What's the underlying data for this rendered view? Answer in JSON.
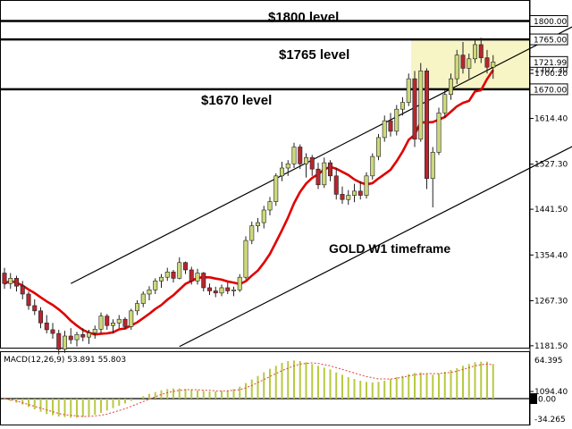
{
  "chart_data": {
    "type": "candlestick",
    "watermark": "GOLD W1 timeframe",
    "price_ticks": [
      "1707.30",
      "1700.20",
      "1614.40",
      "1527.30",
      "1441.50",
      "1354.40",
      "1267.30",
      "1181.50",
      "1094.40"
    ],
    "tick_values": [
      1707.3,
      1700.2,
      1614.4,
      1527.3,
      1441.5,
      1354.4,
      1267.3,
      1181.5,
      1094.4
    ],
    "price_range": [
      1040,
      1840
    ],
    "levels": [
      {
        "value": 1800,
        "tag": "1800.00",
        "label": "$1800 level"
      },
      {
        "value": 1765,
        "tag": "1765.00",
        "label": "$1765 level"
      },
      {
        "value": 1670,
        "tag": "1670.00",
        "label": "$1670 level"
      }
    ],
    "current_price": {
      "value": 1721.99,
      "tag": "1721.99"
    },
    "highlight_zone": [
      1670,
      1765
    ],
    "bull_color": "#cdd97a",
    "bear_color": "#b8262e",
    "ma_color": "#e00000",
    "channel": {
      "upper": [
        [
          11,
          1300
        ],
        [
          96,
          1800
        ]
      ],
      "lower": [
        [
          29,
          1180
        ],
        [
          96,
          1572
        ]
      ]
    },
    "candles": [
      [
        1320,
        1330,
        1290,
        1300
      ],
      [
        1300,
        1320,
        1290,
        1310
      ],
      [
        1310,
        1315,
        1285,
        1295
      ],
      [
        1295,
        1305,
        1270,
        1280
      ],
      [
        1280,
        1285,
        1250,
        1258
      ],
      [
        1258,
        1270,
        1240,
        1248
      ],
      [
        1248,
        1255,
        1215,
        1225
      ],
      [
        1225,
        1240,
        1205,
        1212
      ],
      [
        1212,
        1225,
        1195,
        1205
      ],
      [
        1205,
        1212,
        1165,
        1175
      ],
      [
        1175,
        1210,
        1168,
        1200
      ],
      [
        1200,
        1215,
        1185,
        1193
      ],
      [
        1193,
        1208,
        1180,
        1203
      ],
      [
        1203,
        1215,
        1190,
        1198
      ],
      [
        1198,
        1212,
        1185,
        1206
      ],
      [
        1206,
        1220,
        1195,
        1213
      ],
      [
        1213,
        1245,
        1205,
        1238
      ],
      [
        1238,
        1242,
        1212,
        1220
      ],
      [
        1220,
        1232,
        1205,
        1225
      ],
      [
        1225,
        1240,
        1215,
        1232
      ],
      [
        1232,
        1236,
        1212,
        1218
      ],
      [
        1218,
        1252,
        1212,
        1248
      ],
      [
        1248,
        1268,
        1240,
        1262
      ],
      [
        1262,
        1285,
        1255,
        1280
      ],
      [
        1280,
        1295,
        1268,
        1288
      ],
      [
        1288,
        1310,
        1280,
        1305
      ],
      [
        1305,
        1318,
        1292,
        1312
      ],
      [
        1312,
        1330,
        1305,
        1322
      ],
      [
        1322,
        1326,
        1302,
        1310
      ],
      [
        1310,
        1350,
        1308,
        1340
      ],
      [
        1340,
        1342,
        1318,
        1326
      ],
      [
        1326,
        1332,
        1298,
        1305
      ],
      [
        1305,
        1328,
        1298,
        1320
      ],
      [
        1320,
        1322,
        1285,
        1292
      ],
      [
        1292,
        1300,
        1278,
        1286
      ],
      [
        1286,
        1294,
        1274,
        1282
      ],
      [
        1282,
        1298,
        1276,
        1292
      ],
      [
        1292,
        1302,
        1280,
        1286
      ],
      [
        1286,
        1294,
        1276,
        1288
      ],
      [
        1288,
        1318,
        1284,
        1312
      ],
      [
        1312,
        1390,
        1308,
        1382
      ],
      [
        1382,
        1418,
        1375,
        1410
      ],
      [
        1410,
        1425,
        1398,
        1416
      ],
      [
        1416,
        1448,
        1405,
        1440
      ],
      [
        1440,
        1465,
        1430,
        1456
      ],
      [
        1456,
        1510,
        1448,
        1505
      ],
      [
        1505,
        1532,
        1495,
        1520
      ],
      [
        1520,
        1535,
        1505,
        1528
      ],
      [
        1528,
        1568,
        1520,
        1560
      ],
      [
        1560,
        1565,
        1518,
        1528
      ],
      [
        1528,
        1548,
        1502,
        1540
      ],
      [
        1540,
        1545,
        1505,
        1518
      ],
      [
        1518,
        1530,
        1480,
        1488
      ],
      [
        1488,
        1540,
        1482,
        1530
      ],
      [
        1530,
        1535,
        1495,
        1505
      ],
      [
        1505,
        1520,
        1460,
        1470
      ],
      [
        1470,
        1485,
        1452,
        1460
      ],
      [
        1460,
        1478,
        1450,
        1468
      ],
      [
        1468,
        1490,
        1455,
        1476
      ],
      [
        1476,
        1495,
        1460,
        1468
      ],
      [
        1468,
        1512,
        1462,
        1505
      ],
      [
        1505,
        1548,
        1498,
        1542
      ],
      [
        1542,
        1585,
        1535,
        1578
      ],
      [
        1578,
        1620,
        1570,
        1610
      ],
      [
        1610,
        1625,
        1580,
        1590
      ],
      [
        1590,
        1640,
        1582,
        1632
      ],
      [
        1632,
        1655,
        1620,
        1645
      ],
      [
        1645,
        1700,
        1638,
        1690
      ],
      [
        1690,
        1705,
        1560,
        1575
      ],
      [
        1575,
        1720,
        1570,
        1705
      ],
      [
        1705,
        1710,
        1480,
        1500
      ],
      [
        1500,
        1560,
        1445,
        1550
      ],
      [
        1550,
        1635,
        1545,
        1625
      ],
      [
        1625,
        1668,
        1615,
        1660
      ],
      [
        1660,
        1700,
        1650,
        1690
      ],
      [
        1690,
        1745,
        1680,
        1735
      ],
      [
        1735,
        1760,
        1700,
        1710
      ],
      [
        1710,
        1738,
        1690,
        1728
      ],
      [
        1728,
        1765,
        1720,
        1755
      ],
      [
        1755,
        1768,
        1720,
        1730
      ],
      [
        1730,
        1745,
        1700,
        1712
      ],
      [
        1712,
        1735,
        1690,
        1722
      ]
    ],
    "macd": {
      "label": "MACD(12,26,9) 53.891 55.803",
      "ticks": [
        "64.395",
        "0.00",
        "-34.265"
      ],
      "tick_values": [
        64.395,
        0,
        -34.265
      ],
      "range": [
        -42,
        75
      ],
      "zero_tag": "0.00",
      "hist_color": "#b9c940",
      "signal_color": "#e04040",
      "histogram": [
        -2,
        -4,
        -7,
        -10,
        -14,
        -18,
        -22,
        -26,
        -28,
        -30,
        -31,
        -32,
        -32,
        -31,
        -29,
        -27,
        -24,
        -20,
        -16,
        -12,
        -8,
        -4,
        0,
        4,
        8,
        11,
        14,
        16,
        17,
        17,
        16,
        15,
        14,
        13,
        12,
        12,
        13,
        14,
        16,
        20,
        26,
        32,
        38,
        44,
        50,
        55,
        60,
        63,
        64,
        63,
        61,
        58,
        55,
        52,
        49,
        44,
        40,
        36,
        33,
        30,
        28,
        27,
        28,
        30,
        33,
        36,
        38,
        41,
        43,
        44,
        42,
        40,
        42,
        45,
        48,
        51,
        55,
        58,
        61,
        62,
        62,
        58
      ],
      "signal": [
        0,
        -2,
        -4,
        -7,
        -10,
        -13,
        -16,
        -19,
        -22,
        -25,
        -27,
        -28,
        -29,
        -30,
        -30,
        -29,
        -28,
        -26,
        -23,
        -20,
        -17,
        -13,
        -9,
        -5,
        -1,
        3,
        7,
        10,
        12,
        14,
        15,
        15,
        15,
        14,
        14,
        13,
        13,
        13,
        14,
        15,
        18,
        22,
        27,
        32,
        37,
        42,
        47,
        51,
        55,
        58,
        59,
        60,
        59,
        57,
        55,
        52,
        49,
        46,
        43,
        40,
        37,
        35,
        33,
        33,
        33,
        34,
        36,
        38,
        40,
        41,
        42,
        42,
        42,
        43,
        44,
        46,
        49,
        52,
        55,
        57,
        58,
        57
      ]
    }
  }
}
